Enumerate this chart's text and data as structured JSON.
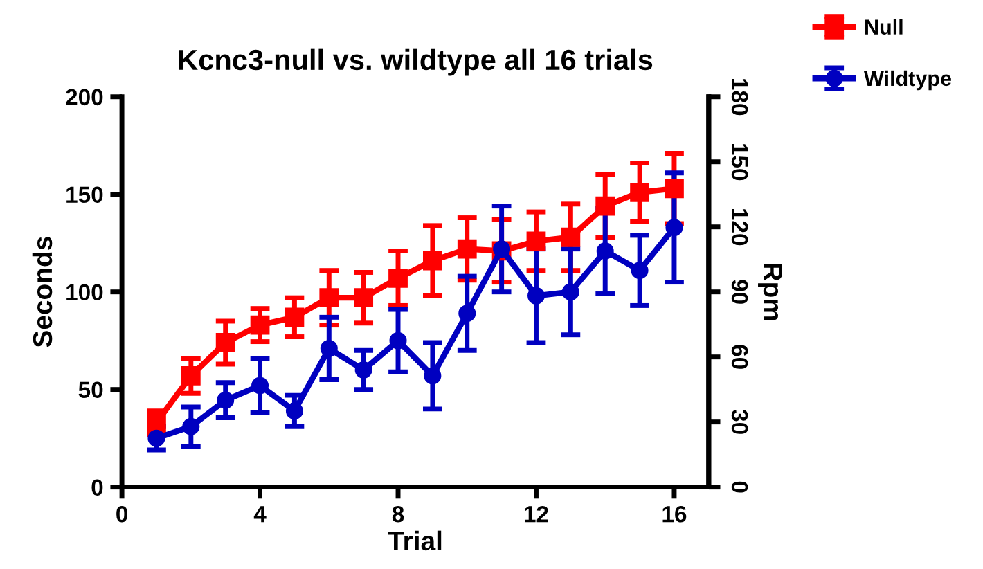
{
  "chart_data": {
    "type": "line",
    "title": "Kcnc3-null vs. wildtype all 16 trials",
    "xlabel": "Trial",
    "ylabel": "Seconds",
    "y2label": "Rpm",
    "x": [
      1,
      2,
      3,
      4,
      5,
      6,
      7,
      8,
      9,
      10,
      11,
      12,
      13,
      14,
      15,
      16
    ],
    "xlim": [
      0,
      17
    ],
    "xticks": [
      0,
      4,
      8,
      12,
      16
    ],
    "ylim": [
      0,
      200
    ],
    "yticks": [
      0,
      50,
      100,
      150,
      200
    ],
    "y2lim": [
      0,
      180
    ],
    "y2ticks": [
      0,
      30,
      60,
      90,
      120,
      150,
      180
    ],
    "series": [
      {
        "name": "Null",
        "color": "#ff0000",
        "marker": "square",
        "values": [
          33,
          57,
          74,
          83,
          87,
          97,
          97,
          107,
          116,
          122,
          121,
          126,
          128,
          144,
          151,
          153
        ],
        "errors": [
          6,
          9,
          11,
          8.5,
          10,
          14,
          13,
          14,
          18,
          16,
          16,
          15,
          17,
          16,
          15,
          18
        ]
      },
      {
        "name": "Wildtype",
        "color": "#0000c0",
        "marker": "circle",
        "values": [
          25,
          31,
          44.5,
          52,
          39,
          71,
          60,
          75,
          57,
          89,
          122,
          98,
          100,
          121,
          111,
          133
        ],
        "errors": [
          6,
          10,
          9,
          14,
          8,
          16,
          10,
          16,
          17,
          19,
          22,
          24,
          22,
          22,
          18,
          28
        ]
      }
    ],
    "grid": false,
    "legend": "top right"
  }
}
